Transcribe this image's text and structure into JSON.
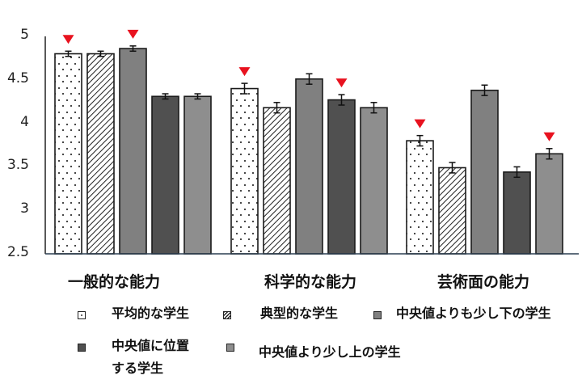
{
  "chart_data": {
    "type": "bar",
    "title": "",
    "xlabel": "",
    "ylabel": "",
    "ylim": [
      2.5,
      5
    ],
    "yticks": [
      "5",
      "4.5",
      "4",
      "3.5",
      "3",
      "2.5"
    ],
    "grid": false,
    "legend_position": "bottom",
    "categories": [
      "一般的な能力",
      "科学的な能力",
      "芸術面の能力"
    ],
    "series": [
      {
        "name": "平均的な学生",
        "pattern": "dots",
        "color": "#ffffff",
        "values": [
          4.8,
          4.4,
          3.8
        ],
        "errors": [
          0.03,
          0.06,
          0.06
        ],
        "markers": [
          true,
          true,
          true
        ]
      },
      {
        "name": "典型的な学生",
        "pattern": "hatch",
        "color": "#ffffff",
        "values": [
          4.8,
          4.18,
          3.49
        ],
        "errors": [
          0.03,
          0.06,
          0.06
        ],
        "markers": [
          false,
          false,
          false
        ]
      },
      {
        "name": "中央値よりも少し下の学生",
        "pattern": "solid",
        "color": "#808080",
        "values": [
          4.86,
          4.51,
          4.38
        ],
        "errors": [
          0.03,
          0.06,
          0.06
        ],
        "markers": [
          true,
          false,
          false
        ]
      },
      {
        "name": "中央値に位置する学生",
        "pattern": "solid",
        "color": "#505050",
        "values": [
          4.31,
          4.27,
          3.44
        ],
        "errors": [
          0.03,
          0.06,
          0.06
        ],
        "markers": [
          false,
          true,
          false
        ]
      },
      {
        "name": "中央値より少し上の学生",
        "pattern": "solid",
        "color": "#8e8e8e",
        "values": [
          4.31,
          4.18,
          3.65
        ],
        "errors": [
          0.03,
          0.06,
          0.06
        ],
        "markers": [
          false,
          false,
          true
        ]
      }
    ],
    "annotations": "Red downward triangles mark selected bars"
  },
  "colors": {
    "marker": "#e8121f",
    "axis": "#222222"
  },
  "legend": {
    "items": [
      {
        "label": "平均的な学生"
      },
      {
        "label": "典型的な学生"
      },
      {
        "label": "中央値よりも少し下の学生"
      },
      {
        "label_line1": "中央値に位置",
        "label_line2": "する学生"
      },
      {
        "label": "中央値より少し上の学生"
      }
    ]
  }
}
